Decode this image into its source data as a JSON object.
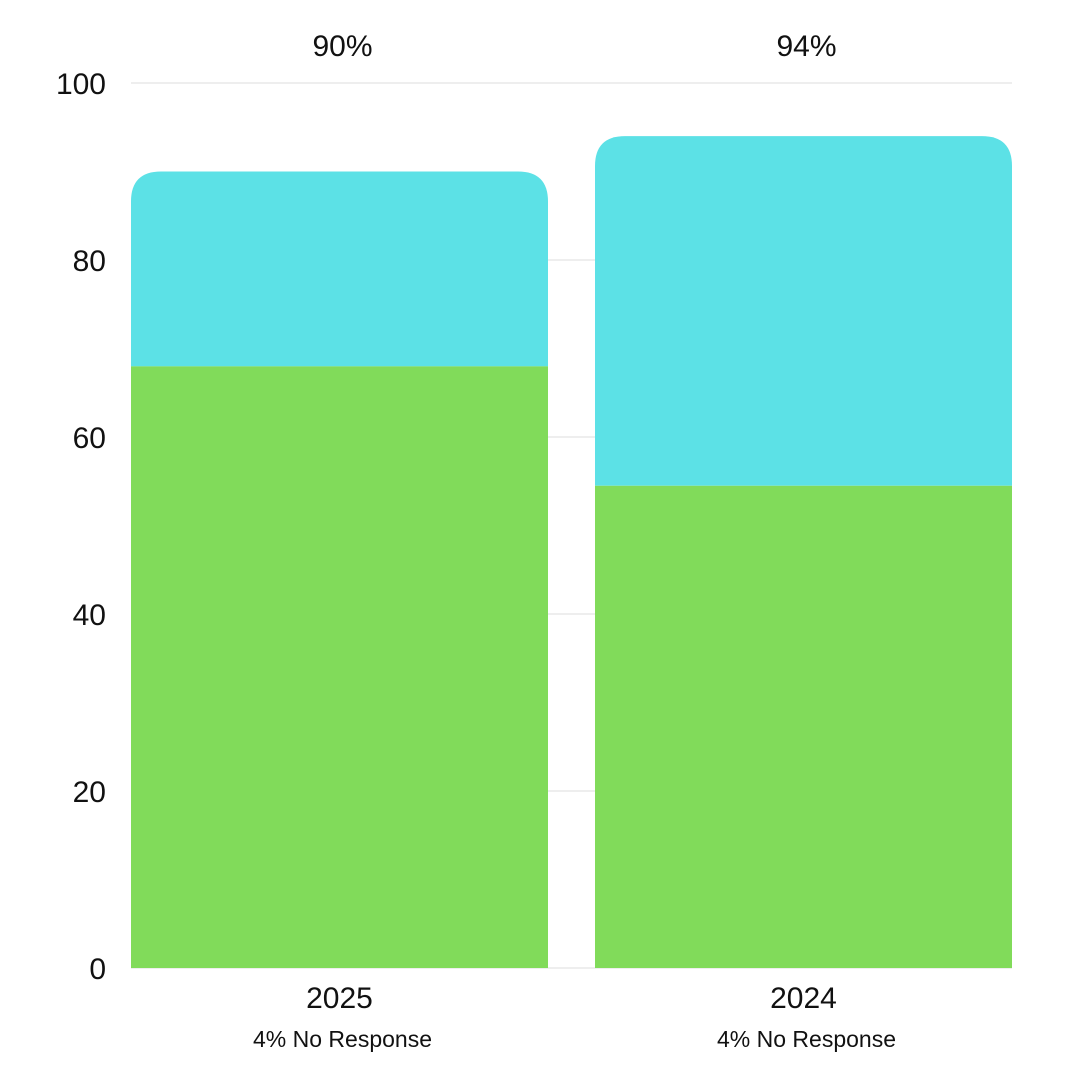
{
  "chart_data": {
    "type": "bar",
    "stacked": true,
    "categories": [
      "2025",
      "2024"
    ],
    "category_notes": [
      "4% No Response",
      "4% No Response"
    ],
    "totals": [
      "90%",
      "94%"
    ],
    "series": [
      {
        "values": [
          68,
          54.5
        ],
        "color": "#81db5a"
      },
      {
        "values": [
          22,
          39.5
        ],
        "color": "#5ce1e6"
      }
    ],
    "y_ticks": [
      "0",
      "20",
      "40",
      "60",
      "80",
      "100"
    ],
    "ylim": [
      0,
      100
    ],
    "grid": true,
    "legend": "none",
    "title": "",
    "xlabel": "",
    "ylabel": ""
  }
}
